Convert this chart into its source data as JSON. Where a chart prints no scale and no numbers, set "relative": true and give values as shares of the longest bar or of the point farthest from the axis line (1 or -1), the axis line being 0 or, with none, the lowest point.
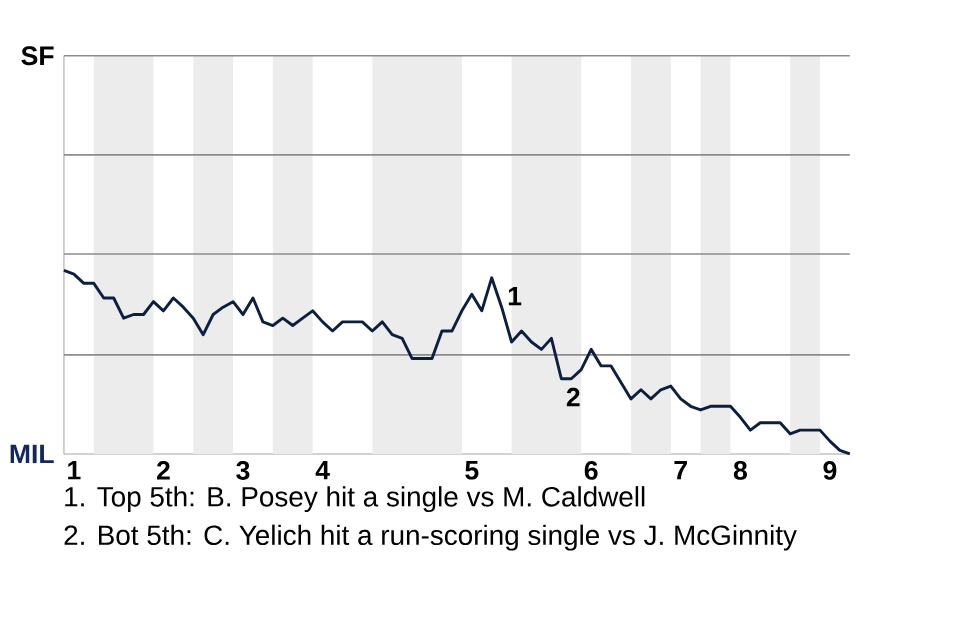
{
  "chart_data": {
    "type": "line",
    "relative": true,
    "categories": [
      null,
      "1",
      null,
      null,
      null,
      null,
      null,
      null,
      null,
      null,
      "2",
      null,
      null,
      null,
      null,
      null,
      null,
      null,
      "3",
      null,
      null,
      null,
      null,
      null,
      null,
      null,
      "4",
      null,
      null,
      null,
      null,
      null,
      null,
      null,
      null,
      null,
      null,
      null,
      null,
      null,
      null,
      "5",
      null,
      null,
      null,
      null,
      null,
      null,
      null,
      null,
      null,
      null,
      null,
      "6",
      null,
      null,
      null,
      null,
      null,
      null,
      null,
      null,
      "7",
      null,
      null,
      null,
      null,
      null,
      "8",
      null,
      null,
      null,
      null,
      null,
      null,
      null,
      null,
      "9",
      null,
      null
    ],
    "series": [
      {
        "color": "#0c1f3f",
        "values": [
          1,
          0.98,
          0.93,
          0.93,
          0.85,
          0.85,
          0.74,
          0.76,
          0.76,
          0.83,
          0.78,
          0.85,
          0.8,
          0.74,
          0.65,
          0.76,
          0.8,
          0.83,
          0.76,
          0.85,
          0.72,
          0.7,
          0.74,
          0.7,
          0.74,
          0.78,
          0.72,
          0.67,
          0.72,
          0.72,
          0.72,
          0.67,
          0.72,
          0.65,
          0.63,
          0.52,
          0.52,
          0.52,
          0.67,
          0.67,
          0.78,
          0.87,
          0.78,
          0.96,
          0.8,
          0.61,
          0.67,
          0.61,
          0.57,
          0.63,
          0.41,
          0.41,
          0.46,
          0.57,
          0.48,
          0.48,
          0.39,
          0.3,
          0.35,
          0.3,
          0.35,
          0.37,
          0.3,
          0.26,
          0.24,
          0.26,
          0.26,
          0.26,
          0.2,
          0.13,
          0.17,
          0.17,
          0.17,
          0.11,
          0.13,
          0.13,
          0.13,
          0.07,
          0.02,
          0
        ]
      }
    ],
    "ref_lines": [
      {
        "axis": "y",
        "value": 0.54,
        "color": "#8c8c8c"
      },
      {
        "axis": "y",
        "value": 1.09,
        "color": "#8c8c8c"
      },
      {
        "axis": "y",
        "value": 1.63,
        "color": "#8c8c8c"
      },
      {
        "axis": "y",
        "value": 2.17,
        "color": "#8c8c8c"
      }
    ],
    "annotations": [
      "SF",
      "MIL",
      "1",
      "2",
      "1. Top 5th: B. Posey hit a single vs M. Caldwell",
      "2. Bot 5th: C. Yelich hit a run-scoring single vs J. McGinnity"
    ]
  }
}
